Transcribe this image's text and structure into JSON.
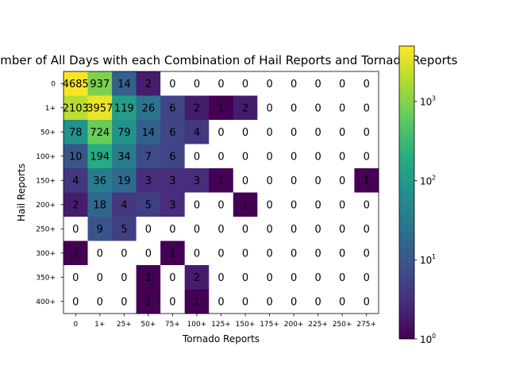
{
  "chart_data": {
    "type": "heatmap",
    "title": "Number of All Days with each Combination of Hail Reports and Tornado Reports",
    "xlabel": "Tornado Reports",
    "ylabel": "Hail Reports",
    "x_categories": [
      "0",
      "1+",
      "25+",
      "50+",
      "75+",
      "100+",
      "125+",
      "150+",
      "175+",
      "200+",
      "225+",
      "250+",
      "275+"
    ],
    "y_categories": [
      "0",
      "1+",
      "50+",
      "100+",
      "150+",
      "200+",
      "250+",
      "300+",
      "350+",
      "400+"
    ],
    "values": [
      [
        4685,
        937,
        14,
        2,
        0,
        0,
        0,
        0,
        0,
        0,
        0,
        0,
        0
      ],
      [
        2103,
        3957,
        119,
        26,
        6,
        2,
        1,
        2,
        0,
        0,
        0,
        0,
        0
      ],
      [
        78,
        724,
        79,
        14,
        6,
        4,
        0,
        0,
        0,
        0,
        0,
        0,
        0
      ],
      [
        10,
        194,
        34,
        7,
        6,
        0,
        0,
        0,
        0,
        0,
        0,
        0,
        0
      ],
      [
        4,
        36,
        19,
        3,
        3,
        3,
        1,
        0,
        0,
        0,
        0,
        0,
        1
      ],
      [
        2,
        18,
        4,
        5,
        3,
        0,
        0,
        1,
        0,
        0,
        0,
        0,
        0
      ],
      [
        0,
        9,
        5,
        0,
        0,
        0,
        0,
        0,
        0,
        0,
        0,
        0,
        0
      ],
      [
        1,
        0,
        0,
        0,
        1,
        0,
        0,
        0,
        0,
        0,
        0,
        0,
        0
      ],
      [
        0,
        0,
        0,
        1,
        0,
        2,
        0,
        0,
        0,
        0,
        0,
        0,
        0
      ],
      [
        0,
        0,
        0,
        1,
        0,
        1,
        0,
        0,
        0,
        0,
        0,
        0,
        0
      ]
    ],
    "color_scale": "log",
    "colormap": "viridis",
    "zero_color": "#ffffff",
    "colorbar": {
      "range": [
        1,
        5000
      ],
      "ticks": [
        {
          "value": 1,
          "base": "10",
          "exp": "0"
        },
        {
          "value": 10,
          "base": "10",
          "exp": "1"
        },
        {
          "value": 100,
          "base": "10",
          "exp": "2"
        },
        {
          "value": 1000,
          "base": "10",
          "exp": "3"
        }
      ]
    },
    "grid": false
  }
}
